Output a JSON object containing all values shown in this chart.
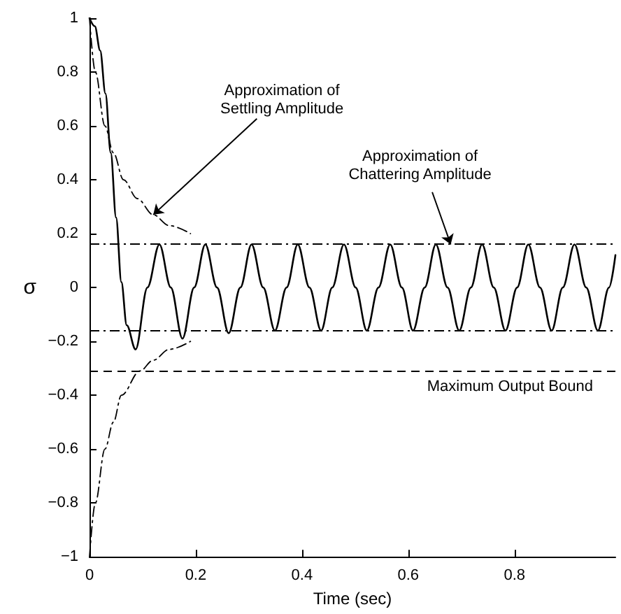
{
  "chart_data": {
    "type": "line",
    "xlabel": "Time (sec)",
    "ylabel": "σ",
    "xlim": [
      0,
      0.99
    ],
    "ylim": [
      -1,
      1
    ],
    "xticks": [
      0,
      0.2,
      0.4,
      0.6,
      0.8
    ],
    "yticks": [
      {
        "value": -1,
        "label": "−1"
      },
      {
        "value": -0.8,
        "label": "−0.8"
      },
      {
        "value": -0.6,
        "label": "−0.6"
      },
      {
        "value": -0.4,
        "label": "−0.4"
      },
      {
        "value": -0.2,
        "label": "−0.2"
      },
      0,
      0.2,
      0.4,
      0.6,
      0.8,
      1
    ],
    "grid": false,
    "marker": "none",
    "series": [
      {
        "color": "#000000",
        "line_style": "solid",
        "x": [
          0,
          0.01,
          0.02,
          0.03,
          0.04,
          0.05,
          0.06,
          0.07,
          0.0868,
          0.109,
          0.1316,
          0.153,
          0.175,
          0.197,
          0.218,
          0.24,
          0.262,
          0.284,
          0.305,
          0.327,
          0.349,
          0.371,
          0.392,
          0.414,
          0.436,
          0.457,
          0.479,
          0.501,
          0.522,
          0.544,
          0.566,
          0.588,
          0.609,
          0.631,
          0.652,
          0.674,
          0.696,
          0.718,
          0.739,
          0.761,
          0.783,
          0.805,
          0.826,
          0.848,
          0.87,
          0.891,
          0.913,
          0.935,
          0.957,
          0.978,
          0.99
        ],
        "values": [
          1,
          0.97,
          0.88,
          0.72,
          0.5,
          0.26,
          0.02,
          -0.14,
          -0.23,
          0,
          0.16,
          0,
          -0.19,
          0,
          0.16,
          0,
          -0.17,
          0,
          0.16,
          0,
          -0.16,
          0,
          0.16,
          0,
          -0.16,
          0,
          0.16,
          0,
          -0.16,
          0,
          0.16,
          0,
          -0.16,
          0,
          0.16,
          0,
          -0.16,
          0,
          0.16,
          0,
          -0.16,
          0,
          0.16,
          0,
          -0.16,
          0,
          0.16,
          0,
          -0.16,
          0,
          0.12
        ]
      },
      {
        "color": "#000000",
        "line_style": "dashdot",
        "x": [
          0,
          0.011,
          0.029,
          0.045,
          0.064,
          0.09,
          0.12,
          0.15,
          0.19
        ],
        "values": [
          1,
          0.8,
          0.6,
          0.5,
          0.4,
          0.33,
          0.27,
          0.23,
          0.2
        ]
      },
      {
        "color": "#000000",
        "line_style": "dashdot",
        "x": [
          0,
          0.011,
          0.029,
          0.045,
          0.06,
          0.095,
          0.12,
          0.15,
          0.19
        ],
        "values": [
          -1,
          -0.8,
          -0.6,
          -0.5,
          -0.4,
          -0.31,
          -0.27,
          -0.23,
          -0.2
        ]
      }
    ],
    "ref_lines": [
      {
        "axis": "y",
        "value": 0.16,
        "line_style": "dashdot",
        "color": "#000000"
      },
      {
        "axis": "y",
        "value": -0.16,
        "line_style": "dashdot",
        "color": "#000000"
      },
      {
        "axis": "y",
        "value": -0.31,
        "line_style": "dashed",
        "color": "#000000",
        "label": "Maximum Output Bound"
      }
    ],
    "annotations": [
      {
        "text": "Approximation of\nSettling Amplitude",
        "x": 0.12,
        "y": 0.27
      },
      {
        "text": "Approximation of\nChattering Amplitude",
        "x": 0.68,
        "y": 0.16
      }
    ]
  }
}
